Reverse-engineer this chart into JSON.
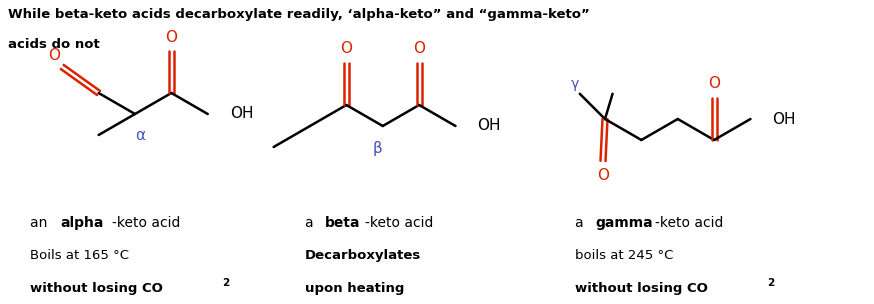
{
  "bg_color": "#ffffff",
  "black": "#000000",
  "red": "#dd2200",
  "blue": "#4455bb",
  "title_line1": "While beta-keto acids decarboxylate readily, ‘alpha-keto” and “gamma-keto”",
  "title_line2": "acids do not",
  "label1_plain": "an ",
  "label1_bold": "alpha",
  "label1_rest": "-keto acid",
  "label2_plain": "a ",
  "label2_bold": "beta",
  "label2_rest": "-keto acid",
  "label3_plain": "a ",
  "label3_bold": "gamma",
  "label3_rest": "-keto acid",
  "note1a": "Boils at 165 °C",
  "note1b_bold": "without losing CO",
  "note1b_sub": "2",
  "note2a_bold": "Decarboxylates",
  "note2b_bold": "upon heating",
  "note3a": "boils at 245 °C",
  "note3b_bold": "without losing CO",
  "note3b_sub": "2"
}
